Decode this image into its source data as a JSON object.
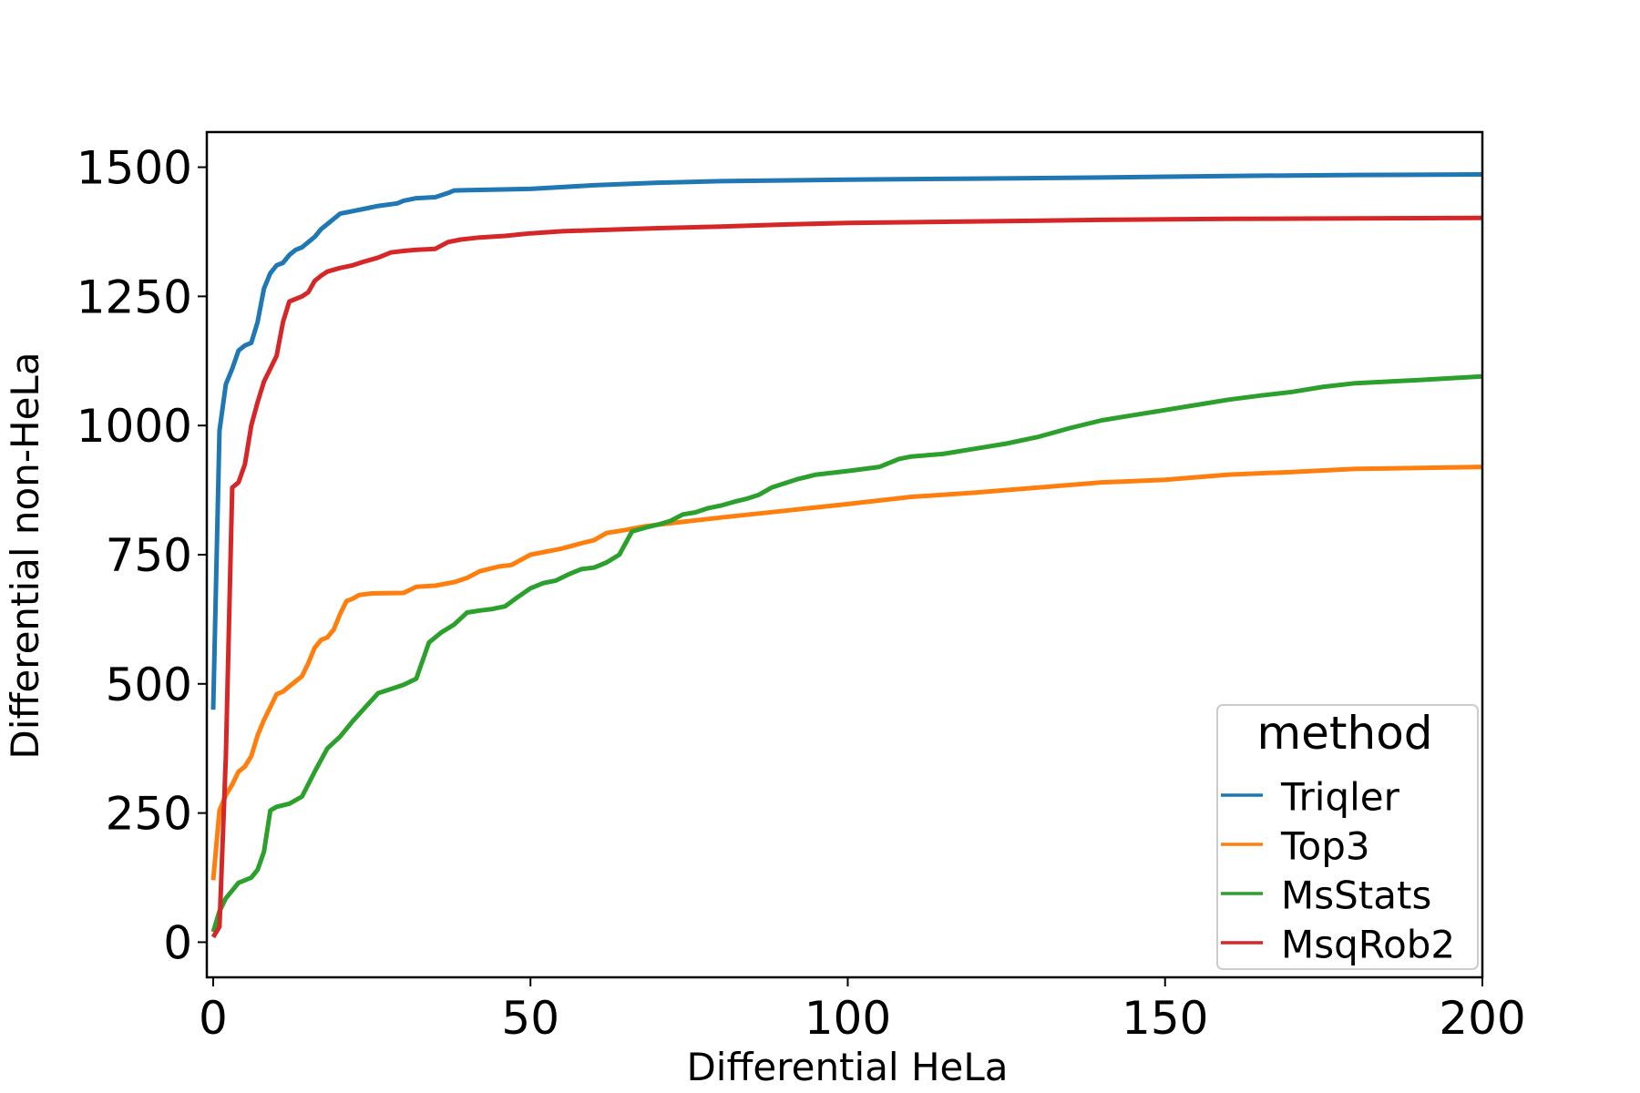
{
  "chart_data": {
    "type": "line",
    "xlabel": "Differential HeLa",
    "ylabel": "Differential non-HeLa",
    "xlim": [
      -1,
      200
    ],
    "ylim": [
      -68,
      1568
    ],
    "xticks": [
      "0",
      "50",
      "100",
      "150",
      "200"
    ],
    "yticks": [
      "0",
      "250",
      "500",
      "750",
      "1000",
      "1250",
      "1500"
    ],
    "grid": false,
    "legend": {
      "title": "method",
      "placement": "lower-right"
    },
    "series": [
      {
        "name": "Triqler",
        "color": "#1f77b4",
        "points": [
          [
            0,
            450
          ],
          [
            1,
            990
          ],
          [
            2,
            1080
          ],
          [
            3,
            1110
          ],
          [
            4,
            1145
          ],
          [
            5,
            1155
          ],
          [
            6,
            1160
          ],
          [
            7,
            1200
          ],
          [
            8,
            1265
          ],
          [
            9,
            1295
          ],
          [
            10,
            1310
          ],
          [
            11,
            1315
          ],
          [
            12,
            1330
          ],
          [
            13,
            1340
          ],
          [
            14,
            1345
          ],
          [
            15,
            1355
          ],
          [
            16,
            1365
          ],
          [
            17,
            1380
          ],
          [
            18,
            1390
          ],
          [
            19,
            1400
          ],
          [
            20,
            1410
          ],
          [
            22,
            1415
          ],
          [
            24,
            1420
          ],
          [
            26,
            1425
          ],
          [
            29,
            1430
          ],
          [
            30,
            1435
          ],
          [
            32,
            1440
          ],
          [
            35,
            1442
          ],
          [
            37,
            1450
          ],
          [
            38,
            1455
          ],
          [
            42,
            1456
          ],
          [
            50,
            1458
          ],
          [
            60,
            1465
          ],
          [
            70,
            1470
          ],
          [
            80,
            1473
          ],
          [
            100,
            1476
          ],
          [
            120,
            1478
          ],
          [
            140,
            1480
          ],
          [
            160,
            1483
          ],
          [
            180,
            1485
          ],
          [
            200,
            1486
          ]
        ]
      },
      {
        "name": "Top3",
        "color": "#ff7f0e",
        "points": [
          [
            0,
            120
          ],
          [
            1,
            255
          ],
          [
            2,
            285
          ],
          [
            3,
            305
          ],
          [
            4,
            330
          ],
          [
            5,
            340
          ],
          [
            6,
            360
          ],
          [
            7,
            400
          ],
          [
            8,
            430
          ],
          [
            9,
            455
          ],
          [
            10,
            480
          ],
          [
            11,
            485
          ],
          [
            12,
            495
          ],
          [
            13,
            505
          ],
          [
            14,
            515
          ],
          [
            15,
            540
          ],
          [
            16,
            570
          ],
          [
            17,
            585
          ],
          [
            18,
            590
          ],
          [
            19,
            605
          ],
          [
            20,
            635
          ],
          [
            21,
            660
          ],
          [
            22,
            665
          ],
          [
            23,
            672
          ],
          [
            25,
            675
          ],
          [
            30,
            676
          ],
          [
            32,
            688
          ],
          [
            35,
            690
          ],
          [
            38,
            697
          ],
          [
            40,
            705
          ],
          [
            42,
            718
          ],
          [
            45,
            727
          ],
          [
            47,
            730
          ],
          [
            50,
            750
          ],
          [
            55,
            762
          ],
          [
            58,
            772
          ],
          [
            60,
            778
          ],
          [
            62,
            792
          ],
          [
            65,
            798
          ],
          [
            68,
            805
          ],
          [
            75,
            815
          ],
          [
            80,
            822
          ],
          [
            90,
            835
          ],
          [
            100,
            848
          ],
          [
            110,
            862
          ],
          [
            120,
            870
          ],
          [
            130,
            880
          ],
          [
            140,
            890
          ],
          [
            150,
            895
          ],
          [
            160,
            905
          ],
          [
            170,
            910
          ],
          [
            180,
            916
          ],
          [
            190,
            918
          ],
          [
            200,
            920
          ]
        ]
      },
      {
        "name": "MsStats",
        "color": "#2ca02c",
        "points": [
          [
            0,
            20
          ],
          [
            1,
            60
          ],
          [
            2,
            85
          ],
          [
            3,
            100
          ],
          [
            4,
            115
          ],
          [
            5,
            120
          ],
          [
            6,
            125
          ],
          [
            7,
            140
          ],
          [
            8,
            175
          ],
          [
            9,
            255
          ],
          [
            10,
            262
          ],
          [
            12,
            268
          ],
          [
            14,
            282
          ],
          [
            16,
            330
          ],
          [
            18,
            375
          ],
          [
            20,
            398
          ],
          [
            22,
            428
          ],
          [
            24,
            455
          ],
          [
            26,
            482
          ],
          [
            28,
            490
          ],
          [
            30,
            498
          ],
          [
            32,
            510
          ],
          [
            34,
            580
          ],
          [
            36,
            600
          ],
          [
            38,
            615
          ],
          [
            40,
            638
          ],
          [
            42,
            642
          ],
          [
            44,
            645
          ],
          [
            46,
            650
          ],
          [
            48,
            668
          ],
          [
            50,
            685
          ],
          [
            52,
            695
          ],
          [
            54,
            700
          ],
          [
            56,
            712
          ],
          [
            58,
            722
          ],
          [
            60,
            725
          ],
          [
            62,
            735
          ],
          [
            64,
            750
          ],
          [
            66,
            795
          ],
          [
            68,
            802
          ],
          [
            70,
            808
          ],
          [
            72,
            815
          ],
          [
            74,
            828
          ],
          [
            76,
            832
          ],
          [
            78,
            840
          ],
          [
            80,
            845
          ],
          [
            82,
            852
          ],
          [
            84,
            858
          ],
          [
            86,
            866
          ],
          [
            88,
            880
          ],
          [
            90,
            888
          ],
          [
            92,
            896
          ],
          [
            95,
            905
          ],
          [
            100,
            912
          ],
          [
            105,
            920
          ],
          [
            108,
            935
          ],
          [
            110,
            940
          ],
          [
            115,
            945
          ],
          [
            120,
            955
          ],
          [
            125,
            965
          ],
          [
            130,
            978
          ],
          [
            135,
            995
          ],
          [
            140,
            1010
          ],
          [
            145,
            1020
          ],
          [
            150,
            1030
          ],
          [
            155,
            1040
          ],
          [
            160,
            1050
          ],
          [
            165,
            1058
          ],
          [
            170,
            1065
          ],
          [
            175,
            1075
          ],
          [
            180,
            1082
          ],
          [
            190,
            1088
          ],
          [
            200,
            1095
          ]
        ]
      },
      {
        "name": "MsqRob2",
        "color": "#d62728",
        "points": [
          [
            0,
            10
          ],
          [
            1,
            30
          ],
          [
            2,
            360
          ],
          [
            3,
            880
          ],
          [
            4,
            890
          ],
          [
            5,
            925
          ],
          [
            6,
            1000
          ],
          [
            7,
            1045
          ],
          [
            8,
            1085
          ],
          [
            9,
            1110
          ],
          [
            10,
            1135
          ],
          [
            11,
            1200
          ],
          [
            12,
            1240
          ],
          [
            13,
            1245
          ],
          [
            14,
            1250
          ],
          [
            15,
            1258
          ],
          [
            16,
            1280
          ],
          [
            17,
            1290
          ],
          [
            18,
            1298
          ],
          [
            20,
            1305
          ],
          [
            22,
            1310
          ],
          [
            24,
            1318
          ],
          [
            26,
            1325
          ],
          [
            28,
            1335
          ],
          [
            30,
            1338
          ],
          [
            32,
            1340
          ],
          [
            35,
            1342
          ],
          [
            37,
            1355
          ],
          [
            39,
            1360
          ],
          [
            42,
            1364
          ],
          [
            46,
            1367
          ],
          [
            50,
            1372
          ],
          [
            55,
            1376
          ],
          [
            60,
            1378
          ],
          [
            70,
            1382
          ],
          [
            80,
            1385
          ],
          [
            90,
            1389
          ],
          [
            100,
            1392
          ],
          [
            120,
            1395
          ],
          [
            140,
            1398
          ],
          [
            160,
            1400
          ],
          [
            180,
            1401
          ],
          [
            200,
            1402
          ]
        ]
      }
    ]
  }
}
